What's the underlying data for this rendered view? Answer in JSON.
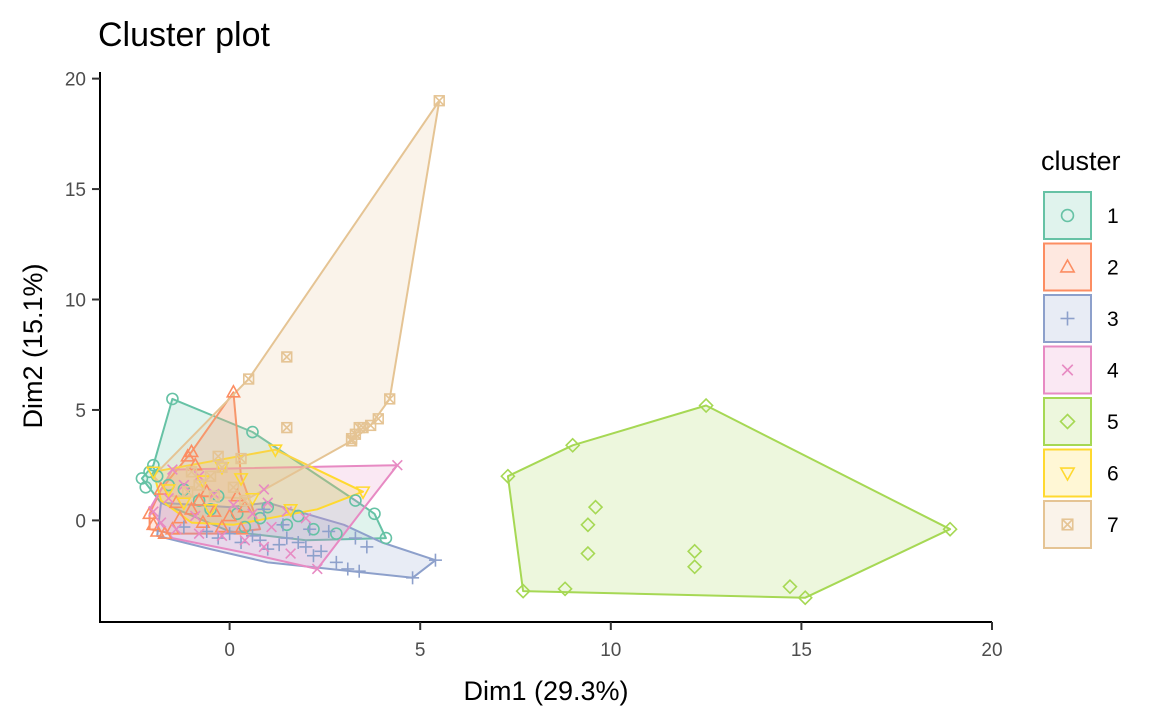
{
  "chart_data": {
    "type": "scatter",
    "title": "Cluster plot",
    "xlabel": "Dim1 (29.3%)",
    "ylabel": "Dim2 (15.1%)",
    "xlim": [
      -3.4,
      20
    ],
    "ylim": [
      -4.6,
      20.3
    ],
    "xticks": [
      0,
      5,
      10,
      15,
      20
    ],
    "yticks": [
      0,
      5,
      10,
      15,
      20
    ],
    "grid": false,
    "legend": {
      "title": "cluster",
      "position": "right"
    },
    "series": [
      {
        "name": "1",
        "color": "#66c2a5",
        "shape": "circle",
        "hull": [
          [
            -2.3,
            1.9
          ],
          [
            -2.0,
            2.5
          ],
          [
            -1.5,
            5.5
          ],
          [
            0.6,
            4.0
          ],
          [
            3.3,
            0.9
          ],
          [
            3.8,
            0.3
          ],
          [
            4.1,
            -0.8
          ],
          [
            2.0,
            -0.9
          ],
          [
            0.0,
            -0.5
          ],
          [
            -1.8,
            0.8
          ]
        ],
        "points": [
          [
            -2.3,
            1.9
          ],
          [
            -2.0,
            2.5
          ],
          [
            -1.5,
            5.5
          ],
          [
            0.6,
            4.0
          ],
          [
            3.3,
            0.9
          ],
          [
            3.8,
            0.3
          ],
          [
            4.1,
            -0.8
          ],
          [
            -2.1,
            2.2
          ],
          [
            -1.9,
            2.0
          ],
          [
            -1.2,
            1.4
          ],
          [
            -0.8,
            0.9
          ],
          [
            -0.5,
            0.5
          ],
          [
            0.2,
            0.3
          ],
          [
            0.8,
            0.1
          ],
          [
            1.5,
            -0.2
          ],
          [
            2.2,
            -0.4
          ],
          [
            2.8,
            -0.6
          ],
          [
            1.0,
            0.6
          ],
          [
            -0.3,
            1.1
          ],
          [
            0.4,
            -0.3
          ],
          [
            1.8,
            0.2
          ],
          [
            -1.6,
            1.6
          ],
          [
            -2.2,
            1.5
          ]
        ]
      },
      {
        "name": "2",
        "color": "#fc8d62",
        "shape": "triangle",
        "hull": [
          [
            -2.1,
            0.3
          ],
          [
            -1.8,
            1.4
          ],
          [
            -1.0,
            3.1
          ],
          [
            0.1,
            5.8
          ],
          [
            0.3,
            2.0
          ],
          [
            0.8,
            -0.4
          ],
          [
            -0.2,
            -0.6
          ],
          [
            -1.5,
            -0.6
          ],
          [
            -2.1,
            -0.4
          ]
        ],
        "points": [
          [
            0.1,
            5.8
          ],
          [
            -1.0,
            3.1
          ],
          [
            -1.1,
            2.9
          ],
          [
            -0.9,
            2.5
          ],
          [
            -2.1,
            0.3
          ],
          [
            -2.0,
            -0.2
          ],
          [
            -1.9,
            -0.5
          ],
          [
            -1.7,
            -0.6
          ],
          [
            -1.5,
            -0.4
          ],
          [
            -1.3,
            0.1
          ],
          [
            -1.0,
            0.5
          ],
          [
            -0.8,
            0.9
          ],
          [
            -0.6,
            1.3
          ],
          [
            -0.4,
            0.4
          ],
          [
            -0.2,
            -0.3
          ],
          [
            0.0,
            0.2
          ],
          [
            0.2,
            1.1
          ],
          [
            0.4,
            0.6
          ],
          [
            -1.8,
            1.4
          ],
          [
            -1.4,
            0.8
          ],
          [
            -0.7,
            -0.1
          ],
          [
            0.3,
            -0.4
          ]
        ]
      },
      {
        "name": "3",
        "color": "#8da0cb",
        "shape": "plus",
        "hull": [
          [
            -1.8,
            0.8
          ],
          [
            0.0,
            0.6
          ],
          [
            1.0,
            0.8
          ],
          [
            3.0,
            -0.2
          ],
          [
            4.0,
            -1.0
          ],
          [
            5.4,
            -1.8
          ],
          [
            4.8,
            -2.6
          ],
          [
            3.2,
            -2.3
          ],
          [
            1.0,
            -1.9
          ],
          [
            -0.5,
            -1.3
          ],
          [
            -1.9,
            -0.7
          ]
        ],
        "points": [
          [
            5.4,
            -1.8
          ],
          [
            4.8,
            -2.6
          ],
          [
            3.6,
            -1.2
          ],
          [
            3.3,
            -0.8
          ],
          [
            3.4,
            -2.3
          ],
          [
            3.1,
            -2.2
          ],
          [
            2.8,
            -1.9
          ],
          [
            2.4,
            -1.4
          ],
          [
            2.2,
            -1.6
          ],
          [
            2.0,
            -1.2
          ],
          [
            1.8,
            -1.0
          ],
          [
            1.5,
            -0.8
          ],
          [
            1.3,
            -1.1
          ],
          [
            1.0,
            -1.3
          ],
          [
            0.8,
            -0.9
          ],
          [
            0.6,
            -0.7
          ],
          [
            0.3,
            -1.0
          ],
          [
            0.0,
            -0.6
          ],
          [
            -0.3,
            -0.8
          ],
          [
            -0.6,
            -0.5
          ],
          [
            2.1,
            -0.4
          ],
          [
            1.4,
            -0.2
          ],
          [
            0.9,
            0.5
          ],
          [
            -1.2,
            -0.3
          ],
          [
            2.6,
            -0.5
          ]
        ]
      },
      {
        "name": "4",
        "color": "#e78ac3",
        "shape": "cross",
        "hull": [
          [
            -2.1,
            0.5
          ],
          [
            -1.5,
            2.3
          ],
          [
            4.4,
            2.5
          ],
          [
            3.5,
            0.5
          ],
          [
            2.3,
            -2.2
          ],
          [
            0.5,
            -1.5
          ],
          [
            -1.5,
            -0.8
          ]
        ],
        "points": [
          [
            4.4,
            2.5
          ],
          [
            2.3,
            -2.2
          ],
          [
            1.6,
            -1.5
          ],
          [
            0.9,
            -1.2
          ],
          [
            0.4,
            -0.9
          ],
          [
            -0.2,
            -0.7
          ],
          [
            -0.8,
            -0.6
          ],
          [
            -1.4,
            -0.4
          ],
          [
            -1.8,
            -0.1
          ],
          [
            -2.0,
            0.4
          ],
          [
            -1.6,
            1.0
          ],
          [
            -1.2,
            1.6
          ],
          [
            -0.8,
            2.0
          ],
          [
            -0.4,
            1.2
          ],
          [
            0.1,
            0.7
          ],
          [
            0.6,
            0.3
          ],
          [
            1.0,
            0.8
          ],
          [
            1.5,
            0.4
          ],
          [
            2.0,
            0.1
          ],
          [
            0.9,
            1.4
          ],
          [
            -1.5,
            2.3
          ],
          [
            1.1,
            -0.3
          ],
          [
            -0.9,
            0.2
          ]
        ]
      },
      {
        "name": "5",
        "color": "#a6d854",
        "shape": "diamond",
        "hull": [
          [
            7.3,
            2.0
          ],
          [
            9.0,
            3.4
          ],
          [
            12.5,
            5.2
          ],
          [
            18.9,
            -0.4
          ],
          [
            15.1,
            -3.5
          ],
          [
            7.7,
            -3.2
          ]
        ],
        "points": [
          [
            12.5,
            5.2
          ],
          [
            9.0,
            3.4
          ],
          [
            7.3,
            2.0
          ],
          [
            9.6,
            0.6
          ],
          [
            9.4,
            -0.2
          ],
          [
            9.4,
            -1.5
          ],
          [
            12.2,
            -1.4
          ],
          [
            12.2,
            -2.1
          ],
          [
            8.8,
            -3.1
          ],
          [
            7.7,
            -3.2
          ],
          [
            14.7,
            -3.0
          ],
          [
            15.1,
            -3.5
          ],
          [
            18.9,
            -0.4
          ]
        ]
      },
      {
        "name": "6",
        "color": "#ffd92f",
        "shape": "triangle-down",
        "hull": [
          [
            -2.0,
            2.2
          ],
          [
            1.2,
            3.2
          ],
          [
            3.5,
            1.3
          ],
          [
            2.3,
            0.5
          ],
          [
            0.1,
            -0.2
          ],
          [
            -1.0,
            -0.1
          ],
          [
            -1.8,
            0.9
          ]
        ],
        "points": [
          [
            1.2,
            3.2
          ],
          [
            3.5,
            1.3
          ],
          [
            1.6,
            0.5
          ],
          [
            -2.0,
            2.2
          ],
          [
            -1.6,
            1.4
          ],
          [
            -1.2,
            0.8
          ],
          [
            -0.7,
            1.8
          ],
          [
            -0.2,
            2.4
          ],
          [
            0.3,
            1.9
          ],
          [
            0.6,
            1.0
          ],
          [
            -0.5,
            0.5
          ]
        ]
      },
      {
        "name": "7",
        "color": "#e5c494",
        "shape": "square-x",
        "hull": [
          [
            -2.0,
            2.0
          ],
          [
            0.5,
            6.4
          ],
          [
            5.5,
            19.0
          ],
          [
            4.2,
            5.5
          ],
          [
            3.7,
            4.3
          ],
          [
            3.2,
            3.6
          ],
          [
            0.5,
            1.0
          ],
          [
            -1.5,
            1.1
          ]
        ],
        "points": [
          [
            5.5,
            19.0
          ],
          [
            1.5,
            7.4
          ],
          [
            0.5,
            6.4
          ],
          [
            4.2,
            5.5
          ],
          [
            3.9,
            4.6
          ],
          [
            3.7,
            4.3
          ],
          [
            3.5,
            4.2
          ],
          [
            3.4,
            4.2
          ],
          [
            3.3,
            3.9
          ],
          [
            3.2,
            3.7
          ],
          [
            3.2,
            3.6
          ],
          [
            1.5,
            4.2
          ],
          [
            0.3,
            2.8
          ],
          [
            -0.2,
            2.4
          ],
          [
            -0.5,
            2.0
          ],
          [
            -0.8,
            1.6
          ],
          [
            -1.1,
            1.3
          ],
          [
            0.1,
            1.5
          ],
          [
            -0.4,
            1.1
          ],
          [
            0.4,
            0.9
          ],
          [
            -1.0,
            2.2
          ],
          [
            -0.3,
            2.9
          ]
        ]
      }
    ]
  }
}
